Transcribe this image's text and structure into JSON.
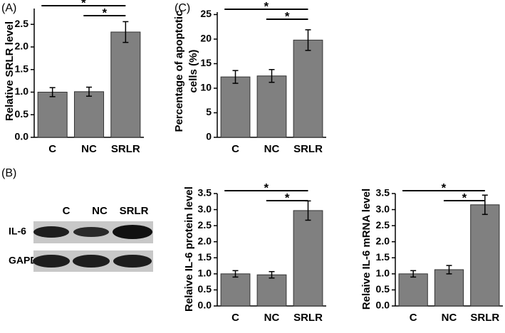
{
  "chart_data": [
    {
      "type": "bar",
      "panel_label": "(A)",
      "ylabel": [
        "Relative SRLR level"
      ],
      "categories": [
        "C",
        "NC",
        "SRLR"
      ],
      "values": [
        1.0,
        1.01,
        2.33
      ],
      "errors": [
        0.1,
        0.1,
        0.23
      ],
      "color": "#808080",
      "ylim": [
        0,
        2.85
      ],
      "yticks": [
        {
          "value": 0,
          "label": "0.0"
        },
        0.5,
        {
          "value": 1,
          "label": "1.0"
        },
        1.5,
        {
          "value": 2,
          "label": "2.0"
        },
        2.5
      ],
      "annotations": [
        "*",
        "*"
      ]
    },
    {
      "type": "bar",
      "panel_label": "(C)",
      "ylabel": [
        "Percentage of apoptotic",
        "cells (%)"
      ],
      "categories": [
        "C",
        "NC",
        "SRLR"
      ],
      "values": [
        12.3,
        12.5,
        19.8
      ],
      "errors": [
        1.3,
        1.3,
        2.1
      ],
      "color": "#808080",
      "ylim": [
        0,
        25.5
      ],
      "yticks": [
        0,
        5,
        10,
        15,
        20,
        25
      ],
      "annotations": [
        "*",
        "*"
      ]
    },
    {
      "type": "bar",
      "ylabel": [
        "Relaive IL-6 protein level"
      ],
      "categories": [
        "C",
        "NC",
        "SRLR"
      ],
      "values": [
        1.0,
        0.97,
        2.97
      ],
      "errors": [
        0.1,
        0.1,
        0.3
      ],
      "color": "#808080",
      "ylim": [
        0,
        3.5
      ],
      "yticks": [
        {
          "value": 0,
          "label": "0.0"
        },
        0.5,
        {
          "value": 1,
          "label": "1.0"
        },
        1.5,
        {
          "value": 2,
          "label": "2.0"
        },
        2.5,
        {
          "value": 3,
          "label": "3.0"
        },
        3.5
      ],
      "annotations": [
        "*",
        "*"
      ]
    },
    {
      "type": "bar",
      "ylabel": [
        "Relaive IL-6 mRNA level"
      ],
      "categories": [
        "C",
        "NC",
        "SRLR"
      ],
      "values": [
        1.0,
        1.13,
        3.15
      ],
      "errors": [
        0.1,
        0.13,
        0.3
      ],
      "color": "#808080",
      "ylim": [
        0,
        3.5
      ],
      "yticks": [
        {
          "value": 0,
          "label": "0.0"
        },
        0.5,
        {
          "value": 1,
          "label": "1.0"
        },
        1.5,
        {
          "value": 2,
          "label": "2.0"
        },
        2.5,
        {
          "value": 3,
          "label": "3.0"
        },
        3.5
      ],
      "annotations": [
        "*",
        "*"
      ]
    }
  ],
  "blot": {
    "panel_label": "(B)",
    "lanes": [
      "C",
      "NC",
      "SRLR"
    ],
    "rows": [
      "IL-6",
      "GAPDH"
    ]
  }
}
